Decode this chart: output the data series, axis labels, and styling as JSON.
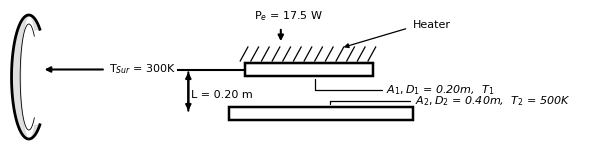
{
  "fig_width": 6.02,
  "fig_height": 1.53,
  "dpi": 100,
  "bg_color": "#ffffff",
  "label_pe": "P$_e$ = 17.5 W",
  "label_heater": "Heater",
  "label_tsur": "T$_{Sur}$ = 300K",
  "label_L": "L = 0.20 m",
  "label_A1": "$A_1, D_1$ = 0.20$m$,  $T_1$",
  "label_A2": "$A_2, D_2$ = 0.40$m$,  $T_2$ = 500$K$",
  "font_size": 8.0,
  "line_color": "#000000",
  "lw": 1.5
}
